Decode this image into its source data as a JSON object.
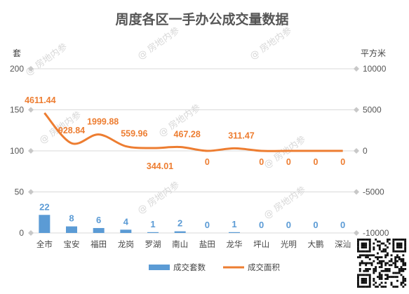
{
  "chart_data": {
    "type": "bar+line",
    "title": "周度各区一手办公成交量数据",
    "left_axis": {
      "label": "套",
      "ticks": [
        0,
        50,
        100,
        150,
        200
      ],
      "range": [
        0,
        200
      ]
    },
    "right_axis": {
      "label": "平方米",
      "ticks": [
        -10000,
        -5000,
        0,
        5000,
        10000
      ],
      "range": [
        -10000,
        10000
      ]
    },
    "categories": [
      "全市",
      "宝安",
      "福田",
      "龙岗",
      "罗湖",
      "南山",
      "盐田",
      "龙华",
      "坪山",
      "光明",
      "大鹏",
      "深汕"
    ],
    "series": [
      {
        "name": "成交套数",
        "type": "bar",
        "axis": "left",
        "color": "#5b9bd5",
        "values": [
          22,
          8,
          6,
          4,
          1,
          2,
          0,
          1,
          0,
          0,
          0,
          0
        ],
        "labels": [
          "22",
          "8",
          "6",
          "4",
          "1",
          "2",
          "0",
          "1",
          "0",
          "0",
          "0",
          "0"
        ]
      },
      {
        "name": "成交面积",
        "type": "line",
        "smooth": true,
        "axis": "right",
        "color": "#ed7d31",
        "values": [
          4611.44,
          928.84,
          1999.88,
          559.96,
          344.01,
          467.28,
          0,
          311.47,
          0,
          0,
          0,
          0
        ],
        "labels": [
          "4611.44",
          "928.84",
          "1999.88",
          "559.96",
          "344.01",
          "467.28",
          "0",
          "311.47",
          "0",
          "0",
          "0",
          "0"
        ]
      }
    ],
    "grid": true,
    "legend": "bottom"
  },
  "watermark": "房地内参",
  "watermark_icon": "at-sign-icon",
  "qr_code_icon": "qr-code-icon"
}
